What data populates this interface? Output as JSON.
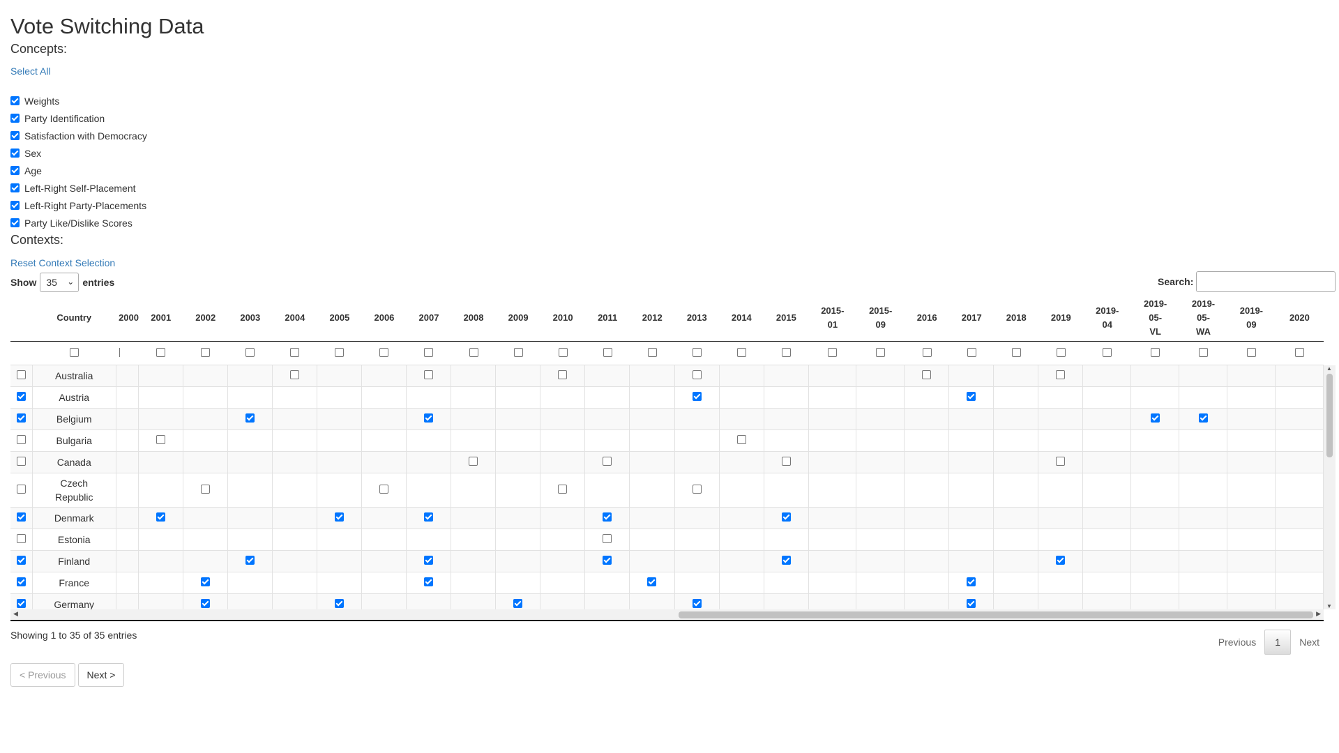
{
  "title": "Vote Switching Data",
  "concepts": {
    "heading": "Concepts:",
    "select_all": "Select All",
    "items": [
      {
        "label": "Weights",
        "checked": true
      },
      {
        "label": "Party Identification",
        "checked": true
      },
      {
        "label": "Satisfaction with Democracy",
        "checked": true
      },
      {
        "label": "Sex",
        "checked": true
      },
      {
        "label": "Age",
        "checked": true
      },
      {
        "label": "Left-Right Self-Placement",
        "checked": true
      },
      {
        "label": "Left-Right Party-Placements",
        "checked": true
      },
      {
        "label": "Party Like/Dislike Scores",
        "checked": true
      }
    ]
  },
  "contexts": {
    "heading": "Contexts:",
    "reset": "Reset Context Selection",
    "show_label": "Show",
    "entries_value": "35",
    "entries_label": "entries",
    "search_label": "Search:",
    "search_value": "",
    "columns": [
      "Country",
      "2000",
      "2001",
      "2002",
      "2003",
      "2004",
      "2005",
      "2006",
      "2007",
      "2008",
      "2009",
      "2010",
      "2011",
      "2012",
      "2013",
      "2014",
      "2015",
      "2015-\n01",
      "2015-\n09",
      "2016",
      "2017",
      "2018",
      "2019",
      "2019-\n04",
      "2019-\n05-\nVL",
      "2019-\n05-\nWA",
      "2019-\n09",
      "2020"
    ],
    "rows": [
      {
        "country": "Australia",
        "selected": false,
        "years": {
          "2004": false,
          "2007": false,
          "2010": false,
          "2013": false,
          "2016": false,
          "2019": false
        }
      },
      {
        "country": "Austria",
        "selected": true,
        "years": {
          "2013": true,
          "2017": true
        }
      },
      {
        "country": "Belgium",
        "selected": true,
        "years": {
          "2003": true,
          "2007": true,
          "2019-\n05-\nVL": true,
          "2019-\n05-\nWA": true
        }
      },
      {
        "country": "Bulgaria",
        "selected": false,
        "years": {
          "2001": false,
          "2014": false
        }
      },
      {
        "country": "Canada",
        "selected": false,
        "years": {
          "2008": false,
          "2011": false,
          "2015": false,
          "2019": false
        }
      },
      {
        "country": "Czech Republic",
        "selected": false,
        "years": {
          "2002": false,
          "2006": false,
          "2010": false,
          "2013": false
        }
      },
      {
        "country": "Denmark",
        "selected": true,
        "years": {
          "2001": true,
          "2005": true,
          "2007": true,
          "2011": true,
          "2015": true
        }
      },
      {
        "country": "Estonia",
        "selected": false,
        "years": {
          "2011": false
        }
      },
      {
        "country": "Finland",
        "selected": true,
        "years": {
          "2003": true,
          "2007": true,
          "2011": true,
          "2015": true,
          "2019": true
        }
      },
      {
        "country": "France",
        "selected": true,
        "years": {
          "2002": true,
          "2007": true,
          "2012": true,
          "2017": true
        }
      },
      {
        "country": "Germany",
        "selected": true,
        "years": {
          "2002": true,
          "2005": true,
          "2009": true,
          "2013": true,
          "2017": true
        }
      }
    ],
    "info": "Showing 1 to 35 of 35 entries",
    "pager": {
      "previous": "Previous",
      "current": "1",
      "next": "Next"
    }
  },
  "nav": {
    "prev": "< Previous",
    "next": "Next >"
  },
  "colors": {
    "accent": "#0075ff",
    "link": "#337ab7"
  }
}
